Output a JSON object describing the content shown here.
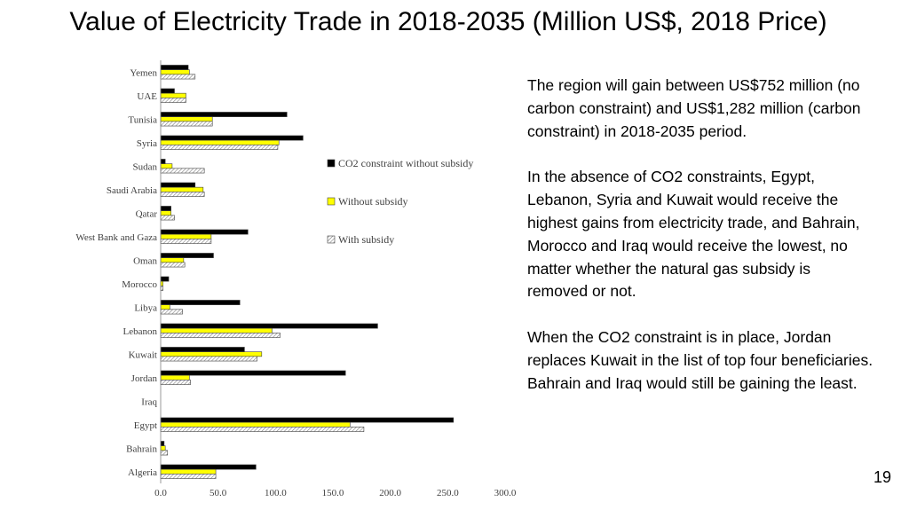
{
  "slide": {
    "title": "Value of Electricity Trade in 2018-2035 (Million US$, 2018 Price)",
    "paragraphs": [
      "The region will gain between US$752 million (no carbon constraint) and US$1,282 million (carbon constraint) in 2018-2035 period.",
      "In the absence of CO2 constraints, Egypt, Lebanon, Syria and Kuwait would receive the highest gains from electricity trade, and Bahrain, Morocco and Iraq would receive the lowest, no matter whether the natural gas subsidy is removed or not.",
      "When the CO2 constraint is in place, Jordan replaces Kuwait in the list of top four beneficiaries. Bahrain and Iraq would still be gaining the least."
    ],
    "page_number": "19"
  },
  "chart_data": {
    "type": "bar",
    "orientation": "horizontal",
    "categories": [
      "Yemen",
      "UAE",
      "Tunisia",
      "Syria",
      "Sudan",
      "Saudi Arabia",
      "Qatar",
      "West Bank and Gaza",
      "Oman",
      "Morocco",
      "Libya",
      "Lebanon",
      "Kuwait",
      "Jordan",
      "Iraq",
      "Egypt",
      "Bahrain",
      "Algeria"
    ],
    "series": [
      {
        "name": "CO2 constraint without subsidy",
        "color": "#000000",
        "pattern": "solid",
        "values": [
          24,
          12,
          110,
          124,
          4,
          30,
          9,
          76,
          46,
          7,
          69,
          189,
          73,
          161,
          0,
          255,
          3,
          83
        ]
      },
      {
        "name": "Without subsidy",
        "color": "#ffff00",
        "pattern": "solid",
        "values": [
          25,
          22,
          45,
          103,
          10,
          37,
          9,
          44,
          20,
          2,
          8,
          97,
          88,
          25,
          0,
          165,
          4,
          48
        ]
      },
      {
        "name": "With subsidy",
        "color": "#d9d9d9",
        "pattern": "hatched",
        "values": [
          30,
          22,
          45,
          102,
          38,
          38,
          12,
          44,
          21,
          2,
          19,
          104,
          84,
          26,
          0,
          177,
          6,
          48
        ]
      }
    ],
    "xlim": [
      0,
      300
    ],
    "xticks": [
      "0.0",
      "50.0",
      "100.0",
      "150.0",
      "200.0",
      "250.0",
      "300.0"
    ],
    "legend_position": "right",
    "grid": false
  }
}
